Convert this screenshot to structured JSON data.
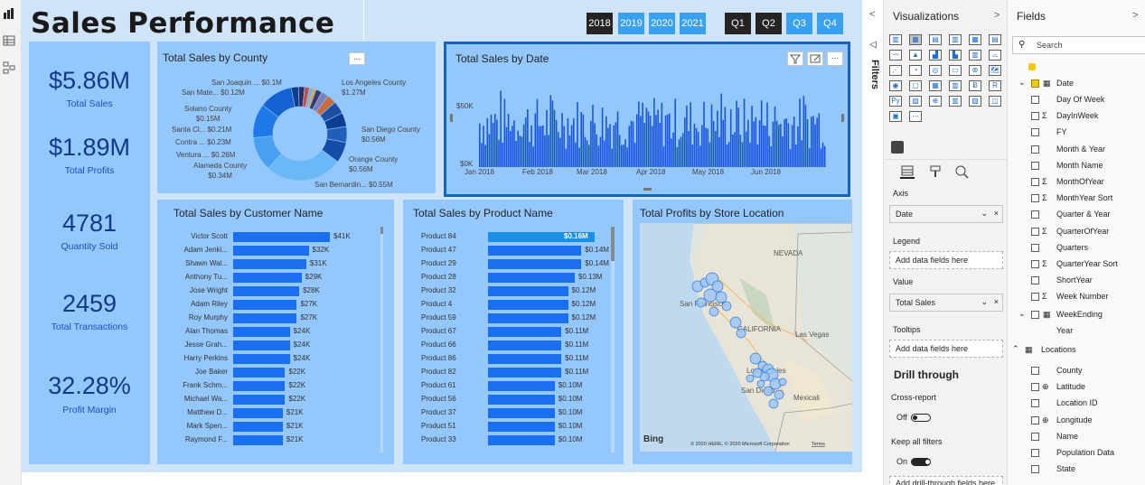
{
  "report": {
    "title": "Sales Performance",
    "year_slicer": [
      "2018",
      "2019",
      "2020",
      "2021"
    ],
    "quarter_slicer": [
      "Q1",
      "Q2",
      "Q3",
      "Q4"
    ],
    "selected_year": "2018",
    "kpis": [
      {
        "value": "$5.86M",
        "label": "Total Sales"
      },
      {
        "value": "$1.89M",
        "label": "Total Profits"
      },
      {
        "value": "4781",
        "label": "Quantity Sold"
      },
      {
        "value": "2459",
        "label": "Total Transactions"
      },
      {
        "value": "32.28%",
        "label": "Profit Margin"
      }
    ],
    "county_chart": {
      "title": "Total Sales by County",
      "more_label": "...",
      "labels": [
        {
          "name": "San Joaquin ...",
          "value": "$0.1M"
        },
        {
          "name": "San Mate...",
          "value": "$0.12M"
        },
        {
          "name": "Solano County",
          "value": "$0.15M"
        },
        {
          "name": "Santa Cl...",
          "value": "$0.21M"
        },
        {
          "name": "Contra ...",
          "value": "$0.23M"
        },
        {
          "name": "Ventura ...",
          "value": "$0.26M"
        },
        {
          "name": "Alameda County",
          "value": "$0.34M"
        },
        {
          "name": "Los Angeles County",
          "value": "$1.27M"
        },
        {
          "name": "San Diego County",
          "value": "$0.56M"
        },
        {
          "name": "Orange County",
          "value": "$0.56M"
        },
        {
          "name": "San Bernardin...",
          "value": "$0.55M"
        }
      ]
    },
    "date_chart": {
      "title": "Total Sales by Date",
      "y_ticks": [
        "$50K",
        "$0K"
      ],
      "x_ticks": [
        "Jan 2018",
        "Feb 2018",
        "Mar 2018",
        "Apr 2018",
        "May 2018",
        "Jun 2018"
      ]
    },
    "customer_chart": {
      "title": "Total Sales by Customer Name",
      "rows": [
        {
          "name": "Victor Scott",
          "value": "$41K",
          "amount": 41
        },
        {
          "name": "Adam Jenki...",
          "value": "$32K",
          "amount": 32
        },
        {
          "name": "Shawn Wal...",
          "value": "$31K",
          "amount": 31
        },
        {
          "name": "Anthony Tu...",
          "value": "$29K",
          "amount": 29
        },
        {
          "name": "Jose Wright",
          "value": "$28K",
          "amount": 28
        },
        {
          "name": "Adam Riley",
          "value": "$27K",
          "amount": 27
        },
        {
          "name": "Roy Murphy",
          "value": "$27K",
          "amount": 27
        },
        {
          "name": "Alan Thomas",
          "value": "$24K",
          "amount": 24
        },
        {
          "name": "Jesse Grah...",
          "value": "$24K",
          "amount": 24
        },
        {
          "name": "Harry Perkins",
          "value": "$24K",
          "amount": 24
        },
        {
          "name": "Joe Baker",
          "value": "$22K",
          "amount": 22
        },
        {
          "name": "Frank Schm...",
          "value": "$22K",
          "amount": 22
        },
        {
          "name": "Michael Wa...",
          "value": "$22K",
          "amount": 22
        },
        {
          "name": "Matthew D...",
          "value": "$21K",
          "amount": 21
        },
        {
          "name": "Mark Spen...",
          "value": "$21K",
          "amount": 21
        },
        {
          "name": "Raymond F...",
          "value": "$21K",
          "amount": 21
        }
      ]
    },
    "product_chart": {
      "title": "Total Sales by Product Name",
      "rows": [
        {
          "name": "Product 84",
          "value": "$0.16M",
          "amount": 0.16
        },
        {
          "name": "Product 47",
          "value": "$0.14M",
          "amount": 0.14
        },
        {
          "name": "Product 29",
          "value": "$0.14M",
          "amount": 0.14
        },
        {
          "name": "Product 28",
          "value": "$0.13M",
          "amount": 0.13
        },
        {
          "name": "Product 32",
          "value": "$0.12M",
          "amount": 0.12
        },
        {
          "name": "Product 4",
          "value": "$0.12M",
          "amount": 0.12
        },
        {
          "name": "Product 59",
          "value": "$0.12M",
          "amount": 0.12
        },
        {
          "name": "Product 67",
          "value": "$0.11M",
          "amount": 0.11
        },
        {
          "name": "Product 66",
          "value": "$0.11M",
          "amount": 0.11
        },
        {
          "name": "Product 86",
          "value": "$0.11M",
          "amount": 0.11
        },
        {
          "name": "Product 82",
          "value": "$0.11M",
          "amount": 0.11
        },
        {
          "name": "Product 61",
          "value": "$0.10M",
          "amount": 0.1
        },
        {
          "name": "Product 56",
          "value": "$0.10M",
          "amount": 0.1
        },
        {
          "name": "Product 37",
          "value": "$0.10M",
          "amount": 0.1
        },
        {
          "name": "Product 51",
          "value": "$0.10M",
          "amount": 0.1
        },
        {
          "name": "Product 33",
          "value": "$0.10M",
          "amount": 0.1
        }
      ]
    },
    "map_chart": {
      "title": "Total Profits by Store Location",
      "place_labels": [
        "NEVADA",
        "CALIFORNIA",
        "Las Vegas",
        "San Francisco",
        "Los Angeles",
        "San Diego",
        "Mexicali"
      ],
      "bing": "Bing",
      "attribution": "© 2020 HERE, © 2020 Microsoft Corporation",
      "terms": "Terms"
    }
  },
  "filters_pane": {
    "label": "Filters"
  },
  "visualizations_pane": {
    "title": "Visualizations",
    "wells": [
      {
        "header": "Axis",
        "value": "Date",
        "filled": true
      },
      {
        "header": "Legend",
        "value": "Add data fields here",
        "filled": false
      },
      {
        "header": "Value",
        "value": "Total Sales",
        "filled": true
      },
      {
        "header": "Tooltips",
        "value": "Add data fields here",
        "filled": false
      }
    ],
    "drill_through": "Drill through",
    "cross_report": "Cross-report",
    "cross_report_state": "Off",
    "keep_all_filters": "Keep all filters",
    "keep_all_state": "On",
    "add_drill": "Add drill-through fields here"
  },
  "fields_pane": {
    "title": "Fields",
    "search_placeholder": "Search",
    "date_table": "Date",
    "date_fields": [
      {
        "name": "Day Of Week",
        "sigma": false
      },
      {
        "name": "DayInWeek",
        "sigma": true
      },
      {
        "name": "FY",
        "sigma": false
      },
      {
        "name": "Month & Year",
        "sigma": false
      },
      {
        "name": "Month Name",
        "sigma": false
      },
      {
        "name": "MonthOfYear",
        "sigma": true
      },
      {
        "name": "MonthYear Sort",
        "sigma": true
      },
      {
        "name": "Quarter & Year",
        "sigma": false
      },
      {
        "name": "QuarterOfYear",
        "sigma": true
      },
      {
        "name": "Quarters",
        "sigma": false
      },
      {
        "name": "QuarterYear Sort",
        "sigma": true
      },
      {
        "name": "ShortYear",
        "sigma": false
      },
      {
        "name": "Week Number",
        "sigma": true
      }
    ],
    "weekending": "WeekEnding",
    "year_field": "Year",
    "locations_table": "Locations",
    "location_fields": [
      {
        "name": "County",
        "sigma": false,
        "globe": false
      },
      {
        "name": "Latitude",
        "sigma": false,
        "globe": true
      },
      {
        "name": "Location ID",
        "sigma": false,
        "globe": false
      },
      {
        "name": "Longitude",
        "sigma": false,
        "globe": true
      },
      {
        "name": "Name",
        "sigma": false,
        "globe": false
      },
      {
        "name": "Population Data",
        "sigma": false,
        "globe": false
      },
      {
        "name": "State",
        "sigma": false,
        "globe": false
      }
    ]
  }
}
